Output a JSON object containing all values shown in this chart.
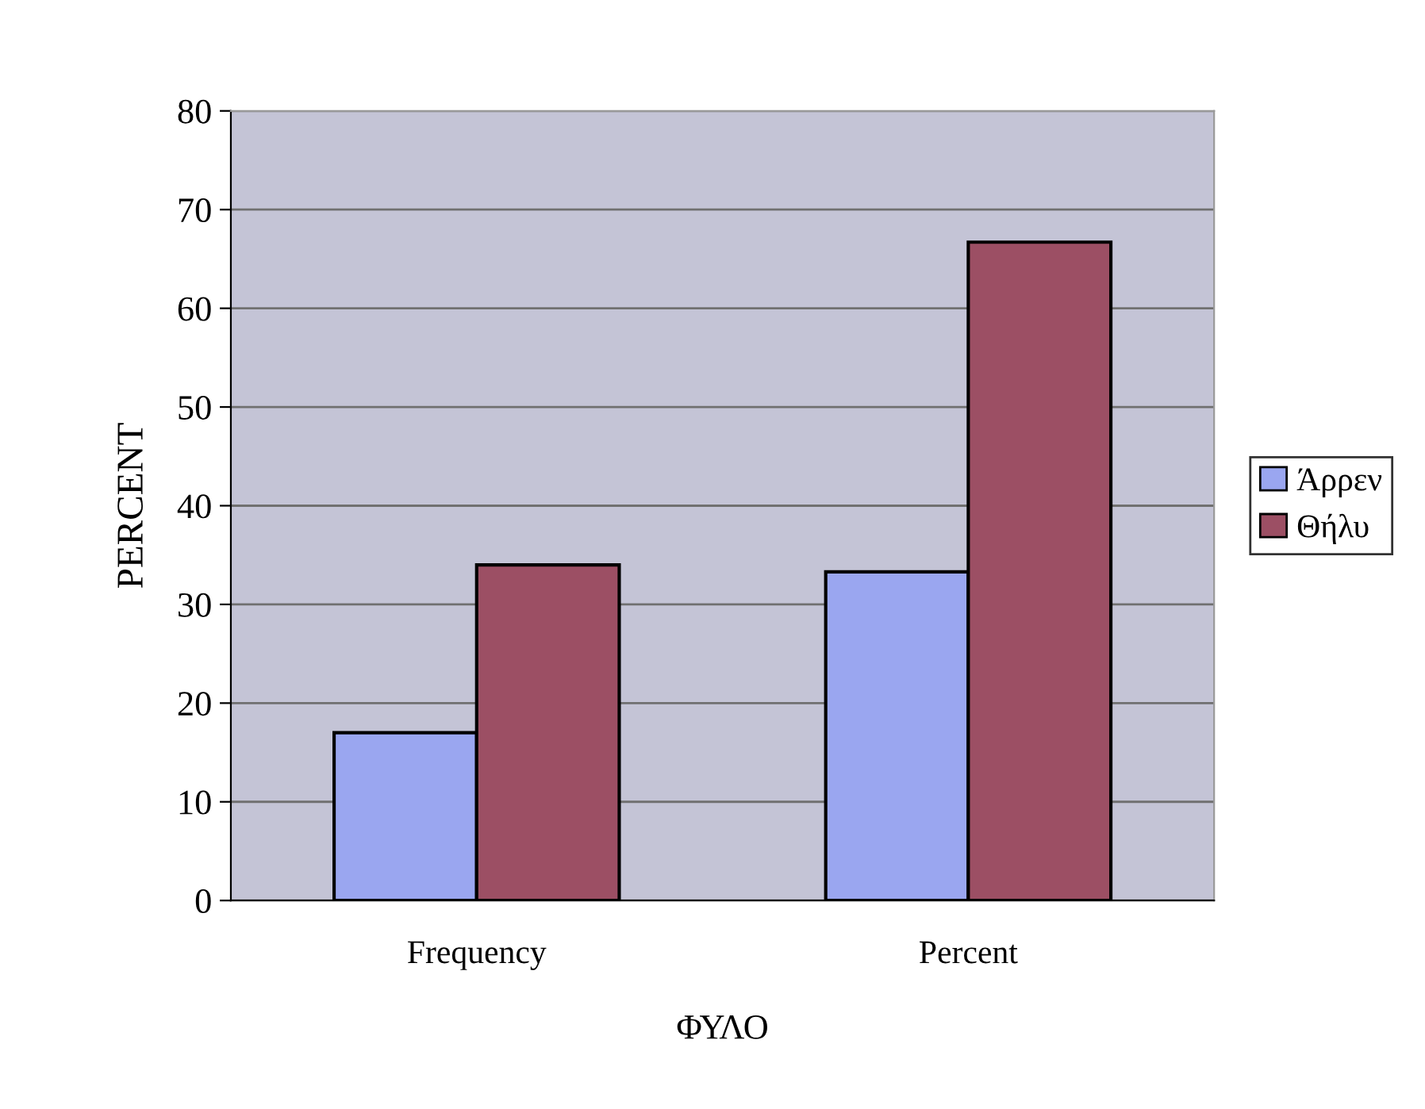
{
  "chart_data": {
    "type": "bar",
    "xlabel": "ΦΥΛΟ",
    "ylabel": "PERCENT",
    "categories": [
      "Frequency",
      "Percent"
    ],
    "series": [
      {
        "name": "Άρρεν",
        "color": "#9aa6f0",
        "values": [
          17,
          33.3
        ]
      },
      {
        "name": "Θήλυ",
        "color": "#9c4f64",
        "values": [
          34,
          66.7
        ]
      }
    ],
    "ylim": [
      0,
      80
    ],
    "yticks": [
      0,
      10,
      20,
      30,
      40,
      50,
      60,
      70,
      80
    ],
    "grid": "y",
    "legend": "right"
  }
}
